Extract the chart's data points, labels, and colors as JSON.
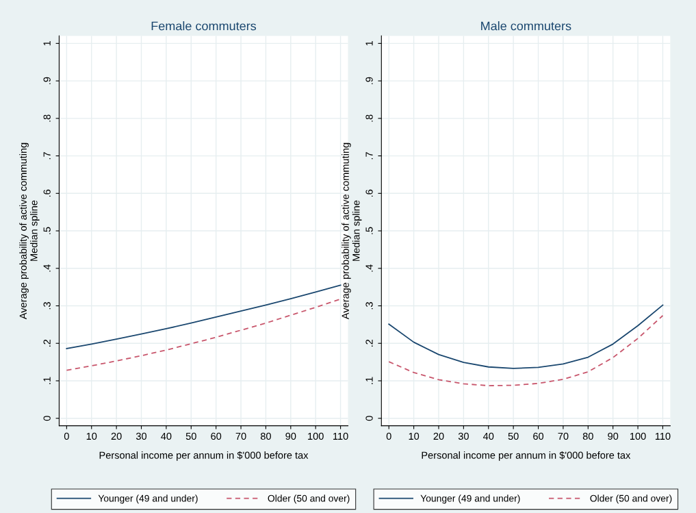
{
  "chart_data": [
    {
      "type": "line",
      "title": "Female commuters",
      "xlabel": "Personal income per annum in $'000 before tax",
      "ylabel": "Average probability of active commuting\nMedian spline",
      "x": [
        0,
        10,
        20,
        30,
        40,
        50,
        60,
        70,
        80,
        90,
        100,
        110
      ],
      "xlim": [
        -3,
        113
      ],
      "xticks": [
        0,
        10,
        20,
        30,
        40,
        50,
        60,
        70,
        80,
        90,
        100,
        110
      ],
      "ylim": [
        -0.02,
        1.02
      ],
      "yticks": [
        0,
        {
          "value": 0.1,
          "label": ".1"
        },
        {
          "value": 0.2,
          "label": ".2"
        },
        {
          "value": 0.3,
          "label": ".3"
        },
        {
          "value": 0.4,
          "label": ".4"
        },
        {
          "value": 0.5,
          "label": ".5"
        },
        {
          "value": 0.6,
          "label": ".6"
        },
        {
          "value": 0.7,
          "label": ".7"
        },
        {
          "value": 0.8,
          "label": ".8"
        },
        {
          "value": 0.9,
          "label": ".9"
        },
        1
      ],
      "grid": true,
      "legend": "bottom",
      "marker": "none",
      "series": [
        {
          "name": "Younger (49 and under)",
          "color": "#1a476f",
          "line_style": "solid",
          "values": [
            0.186,
            0.198,
            0.211,
            0.225,
            0.239,
            0.254,
            0.27,
            0.286,
            0.302,
            0.319,
            0.337,
            0.355
          ]
        },
        {
          "name": "Older (50 and over)",
          "color": "#c8566c",
          "line_style": "dashed",
          "values": [
            0.128,
            0.14,
            0.153,
            0.167,
            0.182,
            0.199,
            0.216,
            0.235,
            0.254,
            0.275,
            0.296,
            0.318
          ]
        }
      ]
    },
    {
      "type": "line",
      "title": "Male commuters",
      "xlabel": "Personal income per annum in $'000 before tax",
      "ylabel": "Average probability of active commuting\nMedian spline",
      "x": [
        0,
        10,
        20,
        30,
        40,
        50,
        60,
        70,
        80,
        90,
        100,
        110
      ],
      "xlim": [
        -3,
        113
      ],
      "xticks": [
        0,
        10,
        20,
        30,
        40,
        50,
        60,
        70,
        80,
        90,
        100,
        110
      ],
      "ylim": [
        -0.02,
        1.02
      ],
      "yticks": [
        0,
        {
          "value": 0.1,
          "label": ".1"
        },
        {
          "value": 0.2,
          "label": ".2"
        },
        {
          "value": 0.3,
          "label": ".3"
        },
        {
          "value": 0.4,
          "label": ".4"
        },
        {
          "value": 0.5,
          "label": ".5"
        },
        {
          "value": 0.6,
          "label": ".6"
        },
        {
          "value": 0.7,
          "label": ".7"
        },
        {
          "value": 0.8,
          "label": ".8"
        },
        {
          "value": 0.9,
          "label": ".9"
        },
        1
      ],
      "grid": true,
      "legend": "bottom",
      "marker": "none",
      "series": [
        {
          "name": "Younger (49 and under)",
          "color": "#1a476f",
          "line_style": "solid",
          "values": [
            0.251,
            0.203,
            0.17,
            0.149,
            0.137,
            0.133,
            0.136,
            0.145,
            0.163,
            0.198,
            0.247,
            0.302
          ]
        },
        {
          "name": "Older (50 and over)",
          "color": "#c8566c",
          "line_style": "dashed",
          "values": [
            0.151,
            0.122,
            0.103,
            0.092,
            0.087,
            0.088,
            0.093,
            0.104,
            0.124,
            0.162,
            0.213,
            0.274
          ]
        }
      ]
    }
  ]
}
